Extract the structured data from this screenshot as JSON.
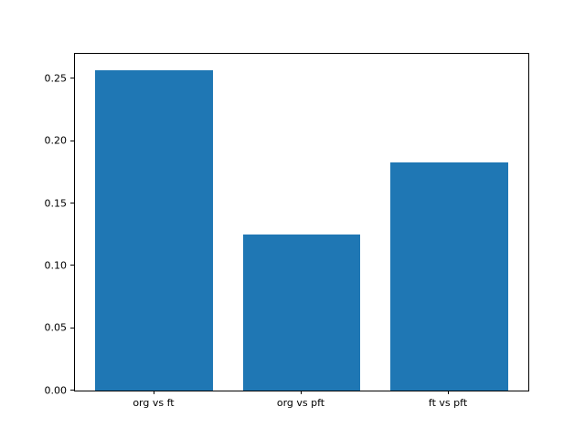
{
  "figure": {
    "background": "#ffffff"
  },
  "chart_data": {
    "type": "bar",
    "categories": [
      "org vs ft",
      "org vs pft",
      "ft vs pft"
    ],
    "values": [
      0.257,
      0.125,
      0.183
    ],
    "title": "",
    "xlabel": "",
    "ylabel": "",
    "ylim": [
      0,
      0.27
    ],
    "yticks": [
      0.0,
      0.05,
      0.1,
      0.15,
      0.2,
      0.25
    ],
    "ytick_labels": [
      "0.00",
      "0.05",
      "0.10",
      "0.15",
      "0.20",
      "0.25"
    ],
    "bar_color": "#1f77b4",
    "spine_color": "#000000",
    "grid": false,
    "legend": null
  }
}
